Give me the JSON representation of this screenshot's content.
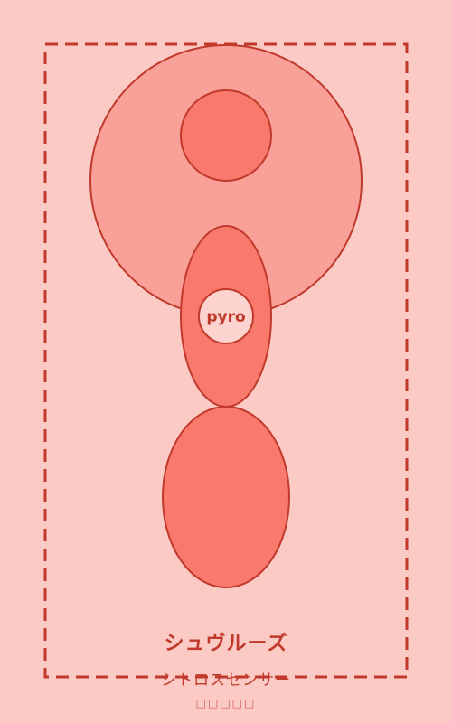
{
  "figure": {
    "center_label": "pyro",
    "title": "シュヴルーズ",
    "subtitle": "シトロスセンサー",
    "footer": "□□□□□"
  },
  "colors": {
    "background": "#fccac4",
    "stroke": "#c0392b",
    "large_circle": "#f9a098",
    "small_circle": "#f97a6c",
    "oval": "#f97a6c",
    "center_badge": "#fcd3cf"
  }
}
